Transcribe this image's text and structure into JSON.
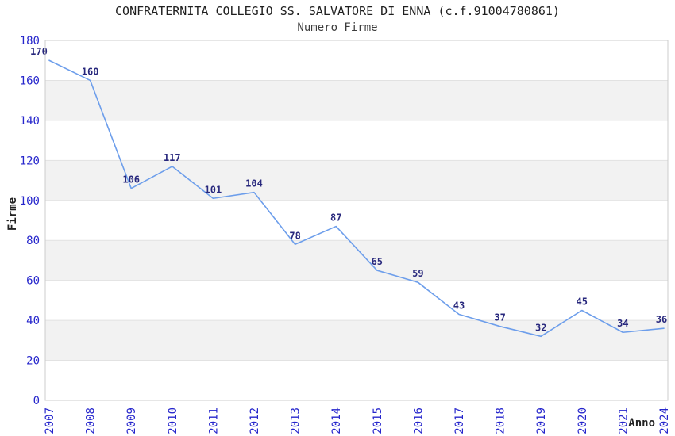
{
  "chart_data": {
    "type": "line",
    "title": "CONFRATERNITA COLLEGIO SS. SALVATORE DI ENNA (c.f.91004780861)",
    "subtitle": "Numero Firme",
    "xlabel": "Anno",
    "ylabel": "Firme",
    "categories": [
      "2007",
      "2008",
      "2009",
      "2010",
      "2011",
      "2012",
      "2013",
      "2014",
      "2015",
      "2016",
      "2017",
      "2018",
      "2019",
      "2020",
      "2021",
      "2024"
    ],
    "values": [
      170,
      160,
      106,
      117,
      101,
      104,
      78,
      87,
      65,
      59,
      43,
      37,
      32,
      45,
      34,
      36
    ],
    "ylim": [
      0,
      180
    ],
    "y_ticks": [
      0,
      20,
      40,
      60,
      80,
      100,
      120,
      140,
      160,
      180
    ],
    "grid": true,
    "legend": "none",
    "alternating_bands": true,
    "colors": {
      "line": "#6d9eeb",
      "data_label": "#28287d",
      "tick_label": "#2626cc",
      "band": "#f2f2f2",
      "gridline": "#e2e2e2",
      "plot_border": "#cccccc",
      "title": "#1f1f1f",
      "subtitle": "#3c3c3c",
      "axis_title": "#222222"
    }
  }
}
